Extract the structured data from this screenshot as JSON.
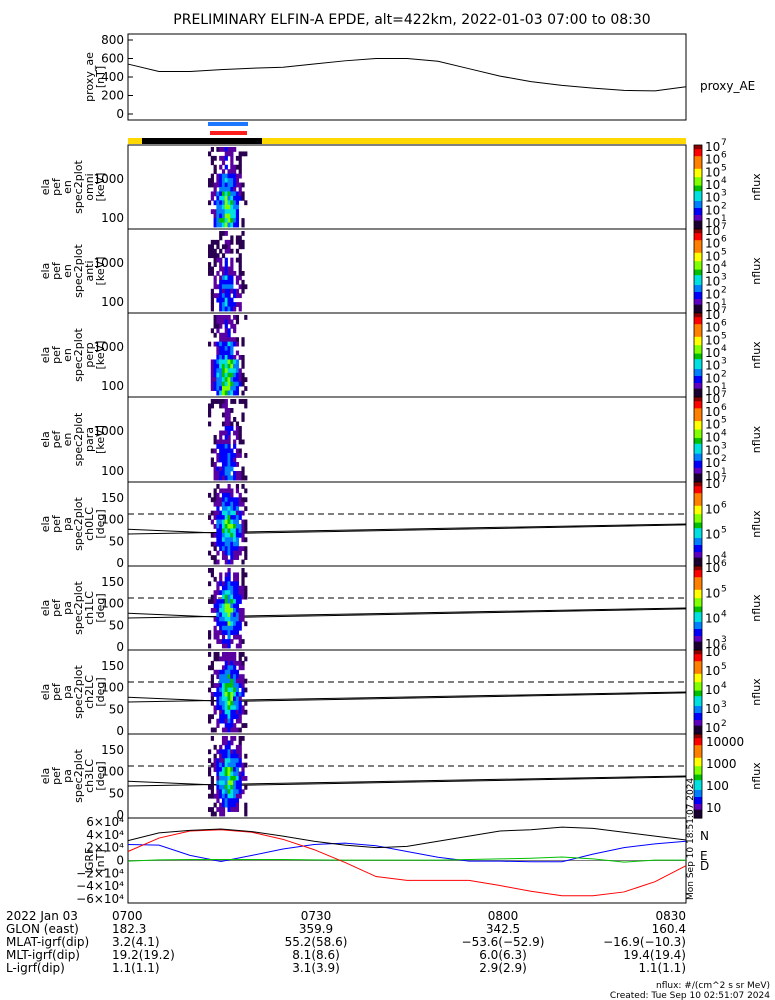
{
  "title": "PRELIMINARY ELFIN-A EPDE, alt=422km, 2022-01-03 07:00 to 08:30",
  "colors": {
    "status_yellow": "#ffd800",
    "status_black": "#000000",
    "blue_bar": "#1e78ff",
    "red_bar": "#ff1e1e",
    "bx": "#0000ff",
    "by": "#00c000",
    "bz": "#ff0000",
    "btot": "#000000"
  },
  "chart_data": [
    {
      "panel": "ae",
      "type": "line",
      "ylabel": [
        "proxy_ae",
        "[nT]"
      ],
      "yticks": [
        "800",
        "600",
        "400",
        "200",
        "0"
      ],
      "ylim": [
        0,
        800
      ],
      "legend": "proxy_AE",
      "x_min": [
        0,
        5,
        10,
        15,
        20,
        25,
        30,
        35,
        40,
        45,
        50,
        55,
        60,
        65,
        70,
        75,
        80,
        85,
        90
      ],
      "values": [
        540,
        460,
        460,
        480,
        495,
        505,
        540,
        575,
        600,
        600,
        570,
        490,
        410,
        350,
        310,
        280,
        255,
        250,
        295
      ]
    },
    {
      "panel": "spec_omni",
      "type": "heatmap",
      "ylabel": [
        "ela",
        "pef",
        "en",
        "spec2plot",
        "omni",
        "[keV]"
      ],
      "yticks": [
        "1000",
        "100"
      ],
      "cbar": [
        "10",
        "7",
        "10",
        "6",
        "10",
        "5",
        "10",
        "4",
        "10",
        "3",
        "10",
        "2",
        "10",
        "1"
      ],
      "cbar_label": "nflux"
    },
    {
      "panel": "spec_anti",
      "type": "heatmap",
      "ylabel": [
        "ela",
        "pef",
        "en",
        "spec2plot",
        "anti",
        "[keV]"
      ],
      "yticks": [
        "1000",
        "100"
      ],
      "cbar": [
        "10",
        "7",
        "10",
        "6",
        "10",
        "5",
        "10",
        "4",
        "10",
        "3",
        "10",
        "2",
        "10",
        "1"
      ],
      "cbar_label": "nflux"
    },
    {
      "panel": "spec_perp",
      "type": "heatmap",
      "ylabel": [
        "ela",
        "pef",
        "en",
        "spec2plot",
        "perp",
        "[keV]"
      ],
      "yticks": [
        "1000",
        "100"
      ],
      "cbar": [
        "10",
        "7",
        "10",
        "6",
        "10",
        "5",
        "10",
        "4",
        "10",
        "3",
        "10",
        "2",
        "10",
        "1"
      ],
      "cbar_label": "nflux"
    },
    {
      "panel": "spec_para",
      "type": "heatmap",
      "ylabel": [
        "ela",
        "pef",
        "en",
        "spec2plot",
        "para",
        "[keV]"
      ],
      "yticks": [
        "1000",
        "100"
      ],
      "cbar": [
        "10",
        "7",
        "10",
        "6",
        "10",
        "5",
        "10",
        "4",
        "10",
        "3",
        "10",
        "2",
        "10",
        "1"
      ],
      "cbar_label": "nflux"
    },
    {
      "panel": "pa_ch0",
      "type": "heatmap",
      "ylabel": [
        "ela",
        "pef",
        "pa",
        "spec2plot",
        "ch0LC",
        "[deg]"
      ],
      "yticks": [
        "150",
        "100",
        "50",
        "0"
      ],
      "cbar": [
        "10",
        "7",
        "10",
        "6",
        "10",
        "5",
        "10",
        "4"
      ],
      "cbar_label": "nflux"
    },
    {
      "panel": "pa_ch1",
      "type": "heatmap",
      "ylabel": [
        "ela",
        "pef",
        "pa",
        "spec2plot",
        "ch1LC",
        "[deg]"
      ],
      "yticks": [
        "150",
        "100",
        "50",
        "0"
      ],
      "cbar": [
        "10",
        "6",
        "10",
        "5",
        "10",
        "4",
        "10",
        "3"
      ],
      "cbar_label": "nflux"
    },
    {
      "panel": "pa_ch2",
      "type": "heatmap",
      "ylabel": [
        "ela",
        "pef",
        "pa",
        "spec2plot",
        "ch2LC",
        "[deg]"
      ],
      "yticks": [
        "150",
        "100",
        "50",
        "0"
      ],
      "cbar": [
        "10",
        "6",
        "10",
        "5",
        "10",
        "4",
        "10",
        "3",
        "10",
        "2"
      ],
      "cbar_label": "nflux"
    },
    {
      "panel": "pa_ch3",
      "type": "heatmap",
      "ylabel": [
        "ela",
        "pef",
        "pa",
        "spec2plot",
        "ch3LC",
        "[deg]"
      ],
      "yticks": [
        "150",
        "100",
        "50",
        "0"
      ],
      "cbar": [
        "10000",
        "1000",
        "100",
        "10"
      ],
      "cbar_label": "nflux"
    },
    {
      "panel": "igrf",
      "type": "line",
      "ylabel": [
        "IGRF",
        "[nT]"
      ],
      "yticks": [
        "6×10⁴",
        "4×10⁴",
        "2×10⁴",
        "0",
        "−2×10⁴",
        "−4×10⁴",
        "−6×10⁴"
      ],
      "ylim": [
        -60000,
        60000
      ],
      "x_min": [
        0,
        5,
        10,
        15,
        20,
        25,
        30,
        35,
        40,
        45,
        50,
        55,
        60,
        65,
        70,
        75,
        80,
        85,
        90
      ],
      "series": [
        {
          "name": "N",
          "values": [
            25000,
            24000,
            8000,
            -1500,
            8000,
            18000,
            25000,
            27000,
            23000,
            14000,
            5000,
            -1000,
            -1000,
            -2000,
            -2000,
            10000,
            20000,
            26000,
            30000
          ]
        },
        {
          "name": "E",
          "values": [
            -1000,
            1000,
            1500,
            1500,
            1500,
            1500,
            1000,
            500,
            500,
            500,
            500,
            1500,
            2500,
            3500,
            5500,
            2500,
            -2500,
            500,
            500
          ]
        },
        {
          "name": "D",
          "values": [
            14000,
            35000,
            46000,
            48000,
            44000,
            33000,
            17000,
            -3000,
            -25000,
            -31000,
            -31000,
            -31000,
            -39000,
            -48000,
            -55000,
            -55000,
            -49000,
            -33000,
            -8000
          ]
        },
        {
          "name": "",
          "values": [
            31000,
            43000,
            47000,
            49000,
            45000,
            38000,
            30000,
            24000,
            20000,
            22000,
            30000,
            38000,
            46000,
            48000,
            52000,
            50000,
            44000,
            38000,
            32000
          ]
        }
      ]
    }
  ],
  "annotations": {
    "igrf_side": "Mon Sep 10 18:51:07 2024",
    "bottom": {
      "rows": [
        {
          "label": "2022 Jan 03",
          "values": [
            "0700",
            "0730",
            "0800",
            "0830"
          ]
        },
        {
          "label": "GLON (east)",
          "values": [
            "182.3",
            "359.9",
            "342.5",
            "160.4"
          ]
        },
        {
          "label": "MLAT-igrf(dip)",
          "values": [
            "3.2(4.1)",
            "55.2(58.6)",
            "−53.6(−52.9)",
            "−16.9(−10.3)"
          ]
        },
        {
          "label": "MLT-igrf(dip)",
          "values": [
            "19.2(19.2)",
            "8.1(8.6)",
            "6.0(6.3)",
            "19.4(19.4)"
          ]
        },
        {
          "label": "L-igrf(dip)",
          "values": [
            "1.1(1.1)",
            "3.1(3.9)",
            "2.9(2.9)",
            "1.1(1.1)"
          ]
        }
      ],
      "footnote": [
        "nflux: #/(cm^2 s sr MeV)",
        "Created: Tue Sep 10 02:51:07 2024"
      ]
    }
  }
}
